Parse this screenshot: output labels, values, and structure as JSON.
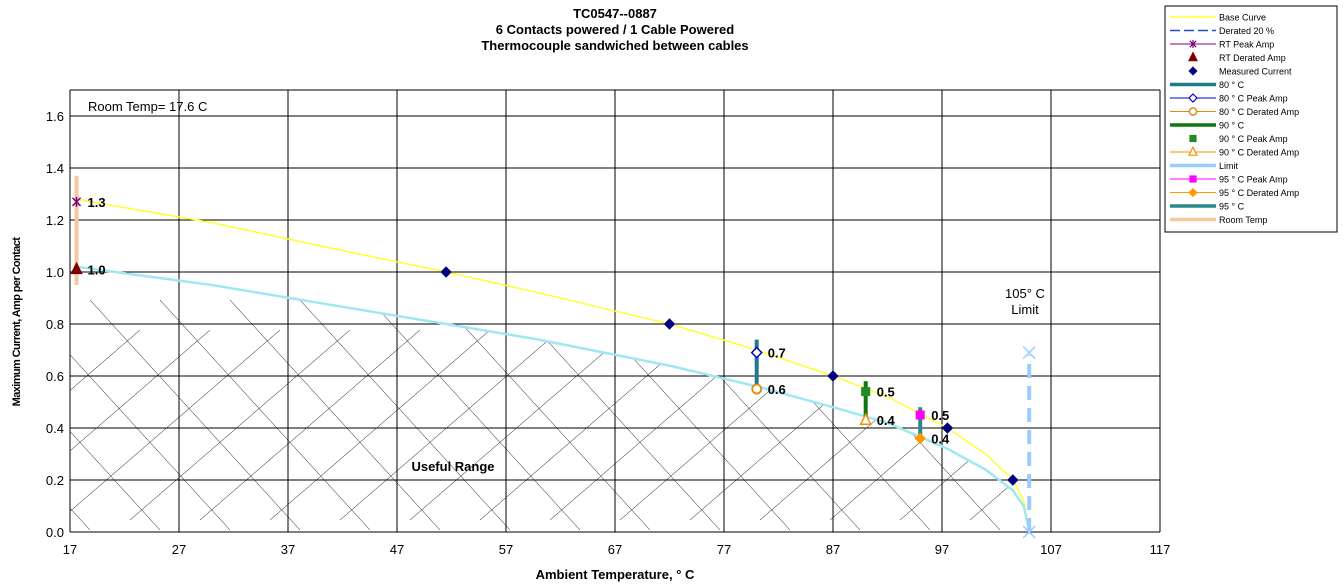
{
  "chart_data": {
    "type": "line",
    "title_lines": [
      "TC0547--0887",
      "6 Contacts powered / 1 Cable Powered",
      "Thermocouple sandwiched between cables"
    ],
    "xlabel": "Ambient Temperature,  ° C",
    "ylabel": "Maximum Current, Amp per Contact",
    "xlim": [
      17,
      117
    ],
    "ylim": [
      0,
      1.7
    ],
    "x_ticks": [
      17,
      27,
      37,
      47,
      57,
      67,
      77,
      87,
      97,
      107,
      117
    ],
    "y_ticks": [
      0.0,
      0.2,
      0.4,
      0.6,
      0.8,
      1.0,
      1.2,
      1.4,
      1.6
    ],
    "y_tick_labels": [
      "0.0",
      "0.2",
      "0.4",
      "0.6",
      "0.8",
      "1.0",
      "1.2",
      "1.4",
      "1.6"
    ],
    "grid": true,
    "legend_position": "top-right",
    "room_temp_note": "Room Temp= 17.6 C",
    "limit_note_lines": [
      "105° C",
      "Limit"
    ],
    "useful_range_label": "Useful Range",
    "series": [
      {
        "name": "Base Curve",
        "color": "#ffff33",
        "kind": "curve",
        "x": [
          17.6,
          30,
          40,
          51.5,
          60,
          72,
          80,
          87,
          92,
          97.5,
          101,
          103.5,
          104.5,
          105
        ],
        "y": [
          1.28,
          1.19,
          1.1,
          1.0,
          0.92,
          0.8,
          0.7,
          0.6,
          0.52,
          0.4,
          0.3,
          0.2,
          0.12,
          0.0
        ]
      },
      {
        "name": "Derated 20 %",
        "color": "#9fe8f2",
        "kind": "curve",
        "x": [
          17.6,
          30,
          40,
          51.5,
          60,
          72,
          80,
          87,
          92,
          97.5,
          101,
          103.5,
          104.5,
          105
        ],
        "y": [
          1.02,
          0.95,
          0.88,
          0.8,
          0.74,
          0.64,
          0.56,
          0.48,
          0.42,
          0.32,
          0.24,
          0.16,
          0.1,
          0.0
        ]
      },
      {
        "name": "RT Peak Amp",
        "color": "#800080",
        "marker": "star",
        "x": [
          17.6
        ],
        "y": [
          1.27
        ],
        "label": "1.3"
      },
      {
        "name": "RT Derated Amp",
        "color": "#800000",
        "marker": "triangle",
        "x": [
          17.6
        ],
        "y": [
          1.01
        ],
        "label": "1.0"
      },
      {
        "name": "Measured Current",
        "color": "#000080",
        "marker": "diamond",
        "x": [
          51.5,
          72,
          87,
          97.5,
          103.5
        ],
        "y": [
          1.0,
          0.8,
          0.6,
          0.4,
          0.2
        ]
      },
      {
        "name": "80 ° C",
        "color": "#1f7a8c",
        "kind": "vline",
        "x": [
          80,
          80
        ],
        "y": [
          0.53,
          0.74
        ]
      },
      {
        "name": "80  ° C Peak Amp",
        "color": "#0000cc",
        "marker": "diamond-open",
        "x": [
          80
        ],
        "y": [
          0.69
        ],
        "label": "0.7"
      },
      {
        "name": "80  ° C Derated Amp",
        "color": "#e08a10",
        "marker": "circle-open",
        "x": [
          80
        ],
        "y": [
          0.55
        ],
        "label": "0.6"
      },
      {
        "name": "90  ° C",
        "color": "#117711",
        "kind": "vline",
        "x": [
          90,
          90
        ],
        "y": [
          0.43,
          0.58
        ]
      },
      {
        "name": "90  ° C Peak Amp",
        "color": "#228b22",
        "marker": "square",
        "x": [
          90
        ],
        "y": [
          0.54
        ],
        "label": "0.5"
      },
      {
        "name": "90  ° C Derated Amp",
        "color": "#ff8c00",
        "marker": "triangle-open",
        "x": [
          90
        ],
        "y": [
          0.43
        ],
        "label": "0.4"
      },
      {
        "name": "Limit",
        "color": "#99ccff",
        "kind": "vline-dashed",
        "x": [
          105,
          105
        ],
        "y": [
          0.0,
          0.68
        ]
      },
      {
        "name": "95  ° C Peak Amp",
        "color": "#ff00ff",
        "marker": "square",
        "x": [
          95
        ],
        "y": [
          0.45
        ],
        "label": "0.5"
      },
      {
        "name": "95  ° C Derated Amp",
        "color": "#ff9900",
        "marker": "diamond",
        "x": [
          95
        ],
        "y": [
          0.36
        ],
        "label": "0.4"
      },
      {
        "name": "95  ° C",
        "color": "#2a8a8a",
        "kind": "vline",
        "x": [
          95,
          95
        ],
        "y": [
          0.36,
          0.48
        ]
      },
      {
        "name": "Room Temp",
        "color": "#f5c8a0",
        "kind": "vline",
        "x": [
          17.6,
          17.6
        ],
        "y": [
          0.95,
          1.37
        ]
      }
    ],
    "limit_markers": {
      "color": "#99ccff",
      "x": [
        105,
        105
      ],
      "y": [
        0.69,
        0.0
      ]
    }
  }
}
